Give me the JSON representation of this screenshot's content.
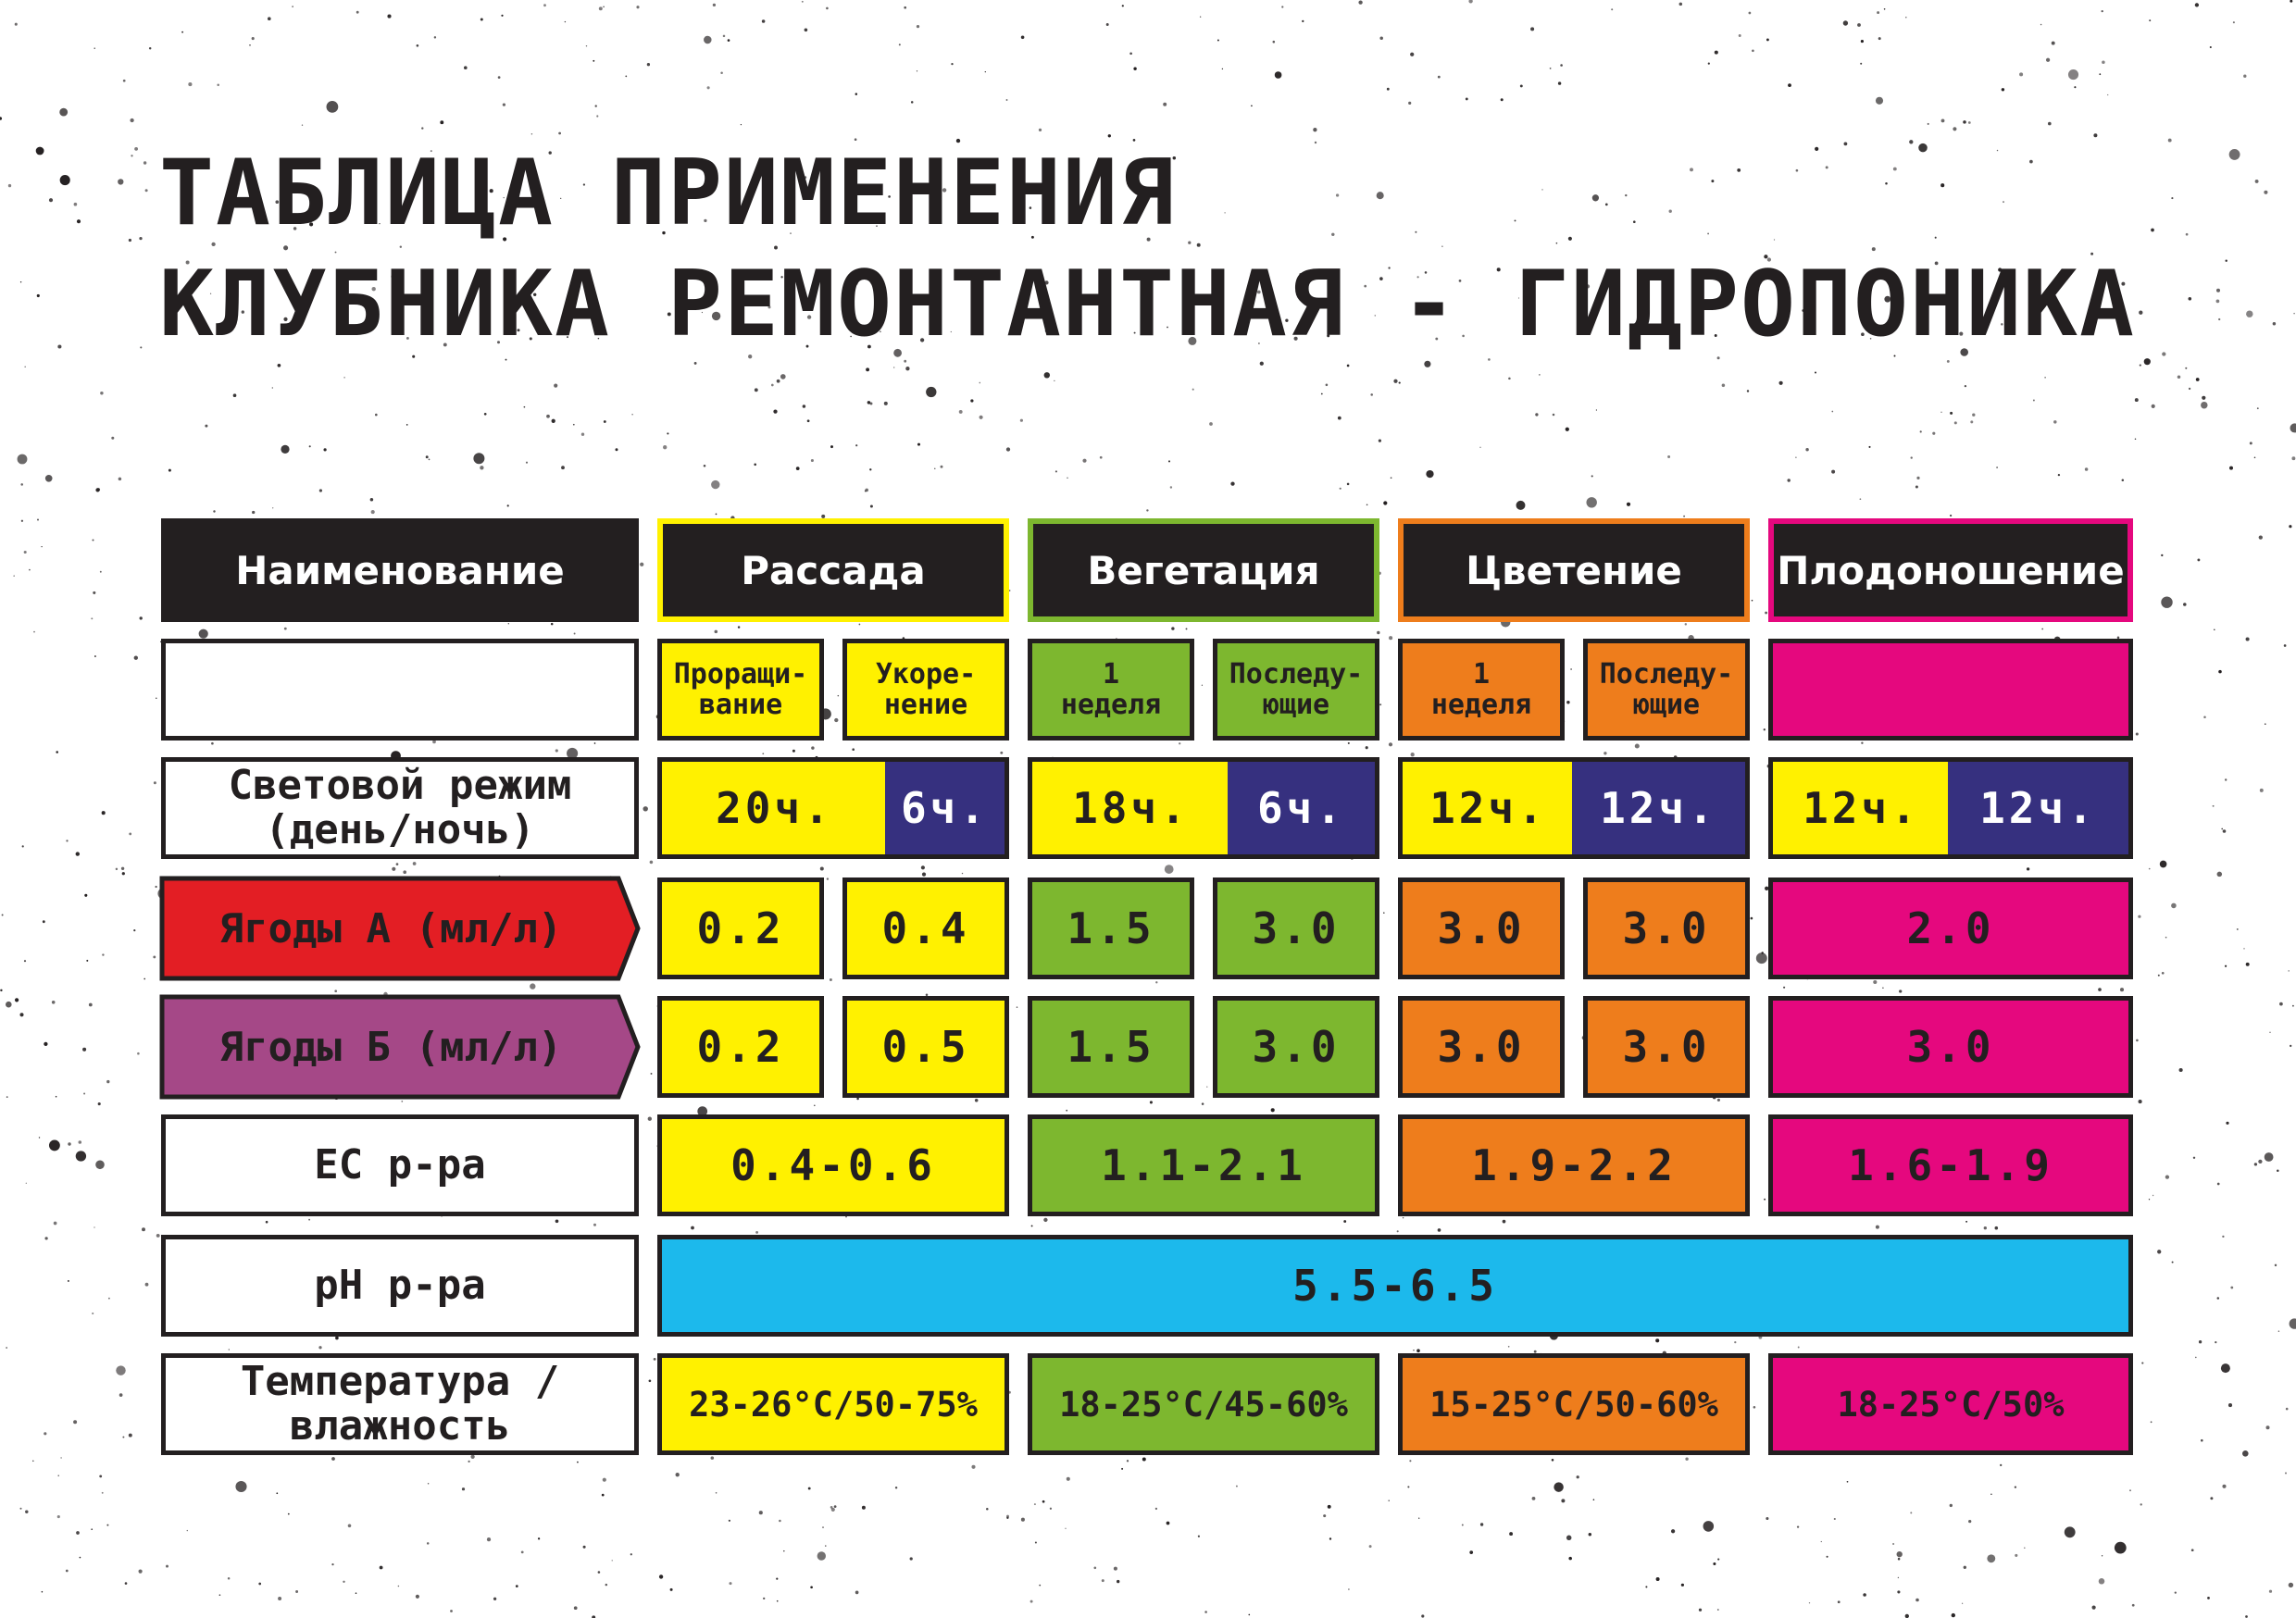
{
  "title": {
    "line1": "ТАБЛИЦА ПРИМЕНЕНИЯ",
    "line2": "КЛУБНИКА РЕМОНТАНТНАЯ - ГИДРОПОНИКА"
  },
  "colors": {
    "rassada": "#fff100",
    "vegetation": "#7db72f",
    "flowering": "#ee7d1c",
    "fruiting": "#e5087e",
    "night": "#36307f",
    "ph": "#1cb9ec",
    "berries_a": "#e31e24",
    "berries_b": "#a54887",
    "dark": "#231f20"
  },
  "header": {
    "name": "Наименование",
    "rassada": "Рассада",
    "vegetation": "Вегетация",
    "flowering": "Цветение",
    "fruiting": "Плодоношение"
  },
  "subheader": {
    "sprout": "Проращи-\nвание",
    "rooting": "Укоре-\nнение",
    "veg_week1": "1\nнеделя",
    "veg_next": "Последу-\nющие",
    "flow_week1": "1\nнеделя",
    "flow_next": "Последу-\nющие"
  },
  "light": {
    "label": "Световой режим\n(день/ночь)",
    "rassada_day": "20ч.",
    "rassada_night": "6ч.",
    "veg_day": "18ч.",
    "veg_night": "6ч.",
    "flow_day": "12ч.",
    "flow_night": "12ч.",
    "fruit_day": "12ч.",
    "fruit_night": "12ч."
  },
  "berries_a": {
    "label": "Ягоды А (мл/л)",
    "sprout": "0.2",
    "rooting": "0.4",
    "veg_week1": "1.5",
    "veg_next": "3.0",
    "flow_week1": "3.0",
    "flow_next": "3.0",
    "fruiting": "2.0"
  },
  "berries_b": {
    "label": "Ягоды Б (мл/л)",
    "sprout": "0.2",
    "rooting": "0.5",
    "veg_week1": "1.5",
    "veg_next": "3.0",
    "flow_week1": "3.0",
    "flow_next": "3.0",
    "fruiting": "3.0"
  },
  "ec": {
    "label": "EC р-ра",
    "rassada": "0.4-0.6",
    "vegetation": "1.1-2.1",
    "flowering": "1.9-2.2",
    "fruiting": "1.6-1.9"
  },
  "ph": {
    "label": "pH р-ра",
    "value": "5.5-6.5"
  },
  "temperature": {
    "label": "Температура /\nвлажность",
    "rassada": "23-26°C/50-75%",
    "vegetation": "18-25°C/45-60%",
    "flowering": "15-25°C/50-60%",
    "fruiting": "18-25°C/50%"
  }
}
